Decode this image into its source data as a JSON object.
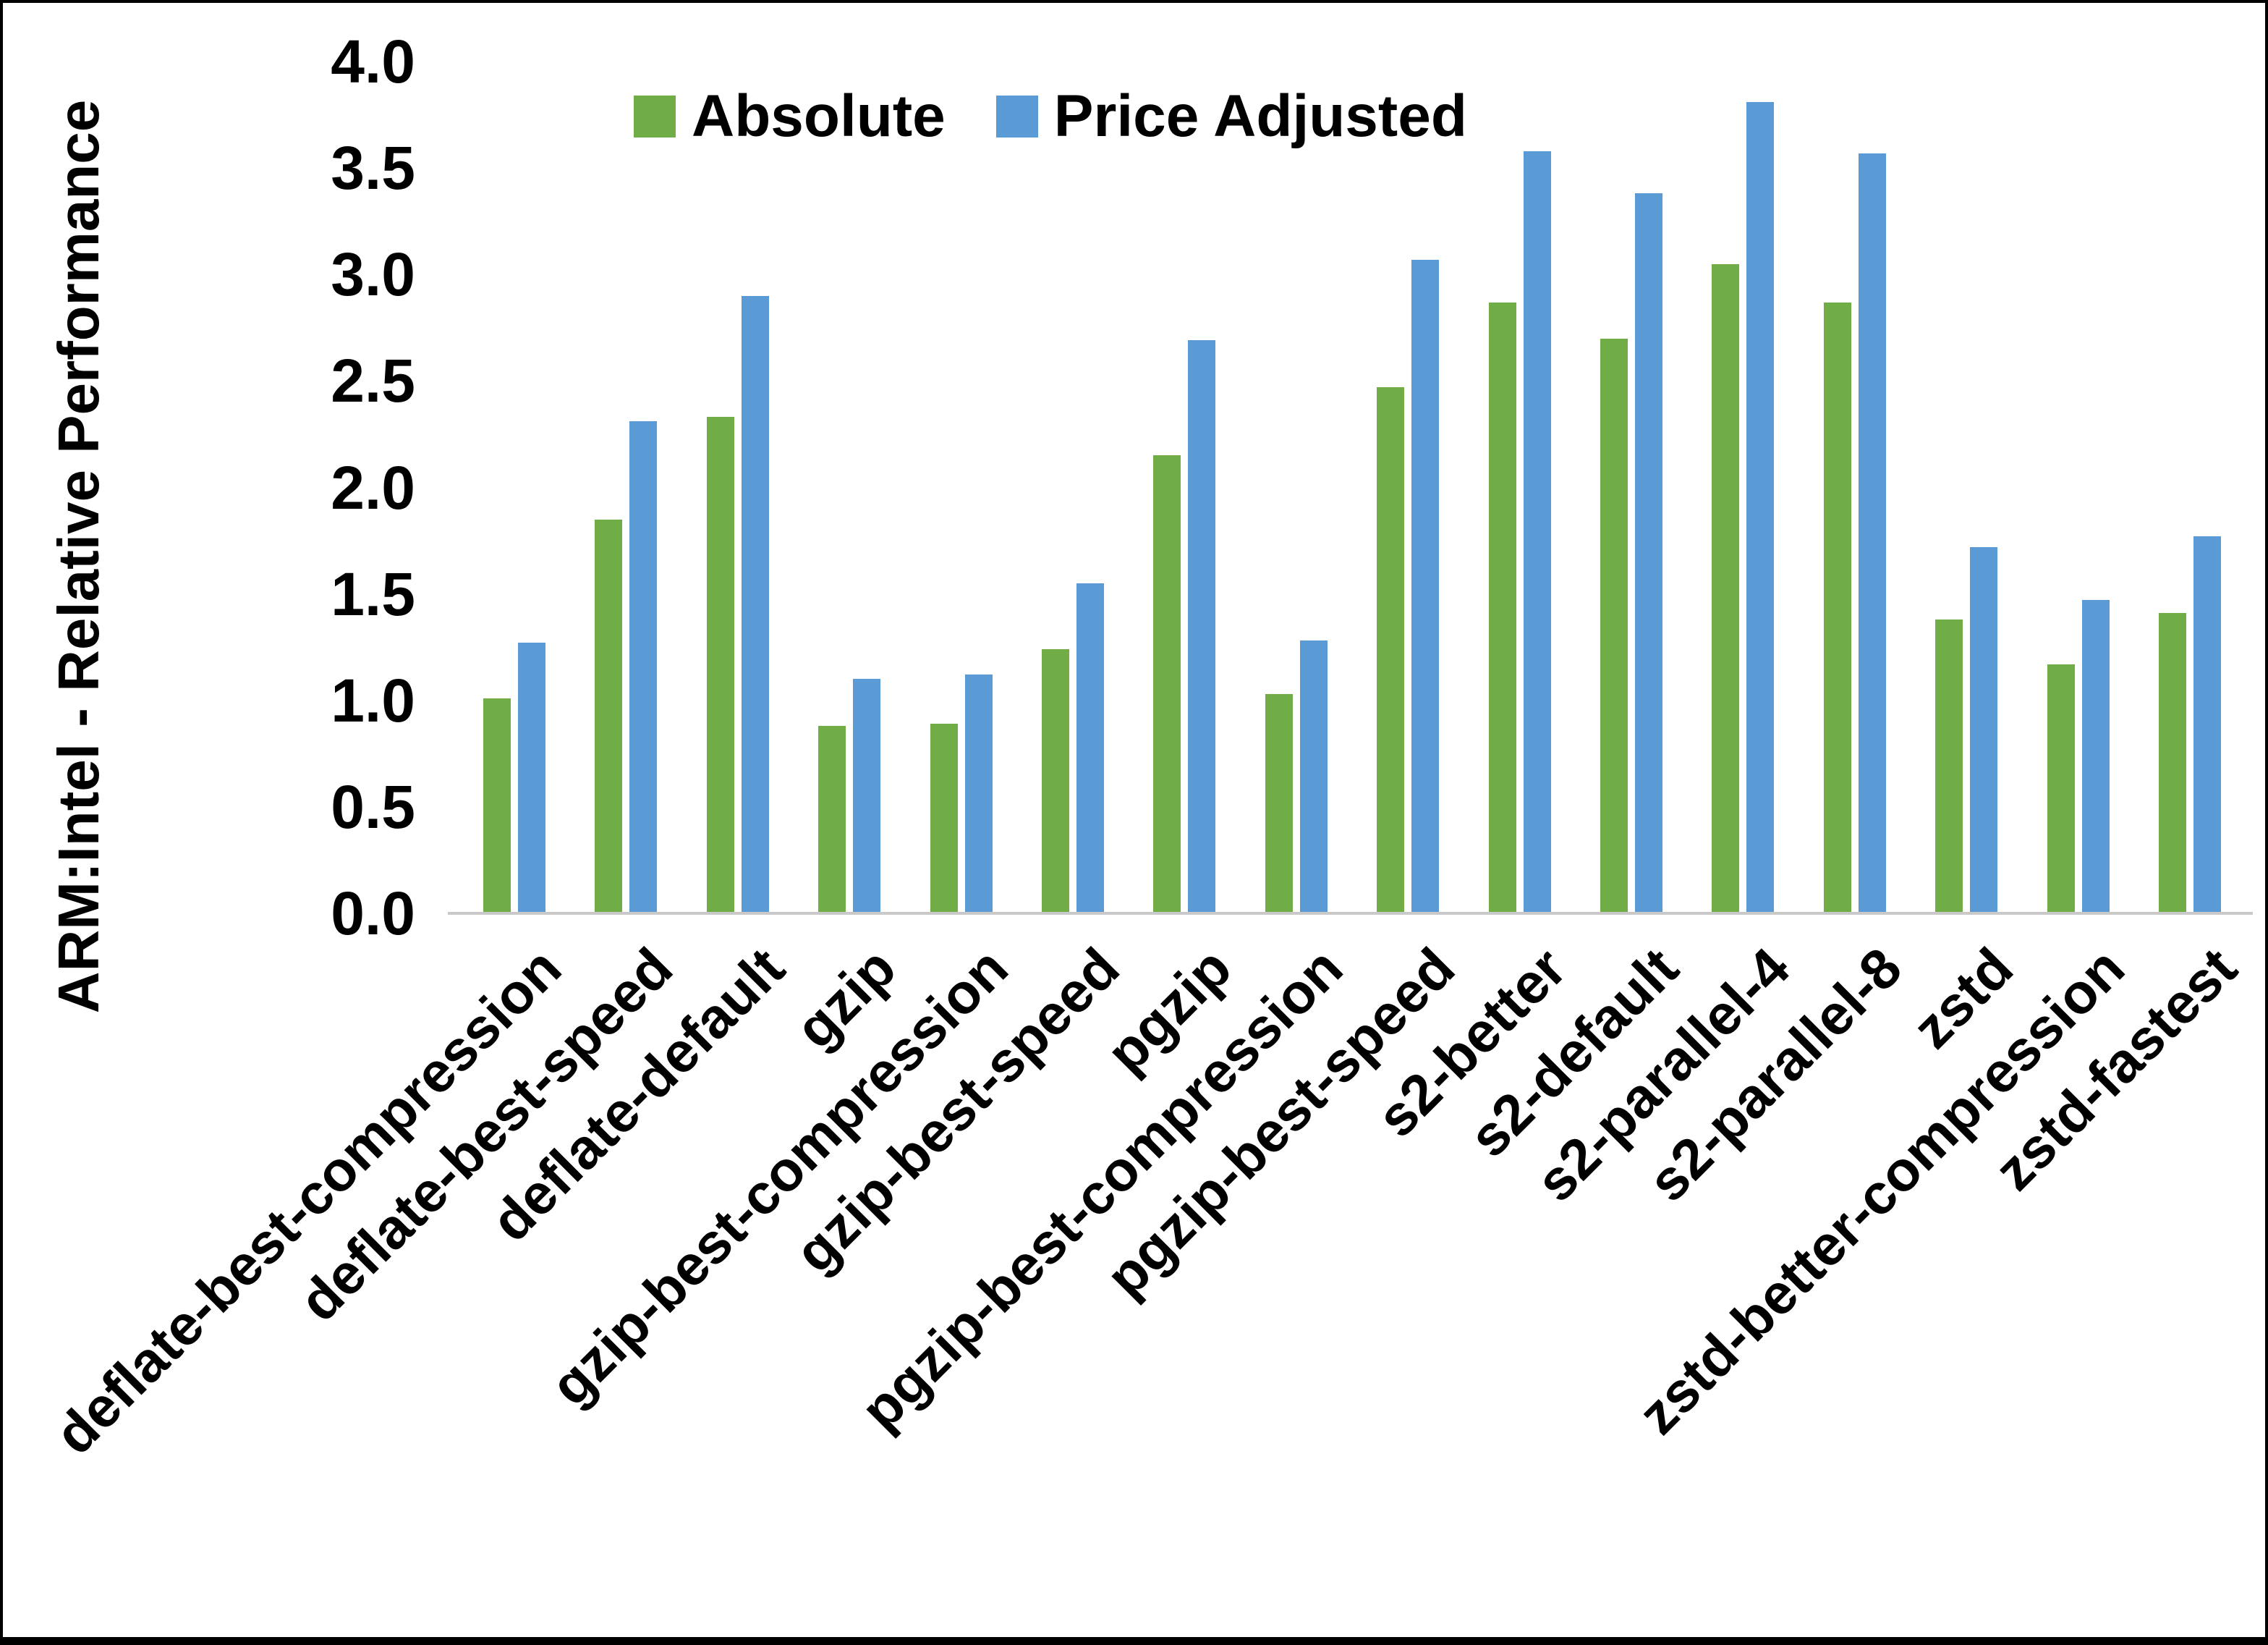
{
  "frame": {
    "background": "#ffffff",
    "border_color": "#000000"
  },
  "y_axis": {
    "title": "ARM:Intel - Relative Performance",
    "ticks": [
      "4.0",
      "3.5",
      "3.0",
      "2.5",
      "2.0",
      "1.5",
      "1.0",
      "0.5",
      "0.0"
    ]
  },
  "legend": {
    "absolute_label": "Absolute",
    "price_adjusted_label": "Price Adjusted"
  },
  "colors": {
    "absolute_green": "#70AD47",
    "price_adjusted_blue": "#5B9BD5",
    "axis_gray": "#c9c9c9"
  },
  "chart_data": {
    "type": "bar",
    "title": "",
    "xlabel": "",
    "ylabel": "ARM:Intel - Relative Performance",
    "ylim": [
      0.0,
      4.0
    ],
    "ytick_step": 0.5,
    "grid": false,
    "legend_position": "top-center",
    "categories": [
      "deflate-best-compression",
      "deflate-best-speed",
      "deflate-default",
      "gzip",
      "gzip-best-compression",
      "gzip-best-speed",
      "pgzip",
      "pgzip-best-compression",
      "pgzip-best-speed",
      "s2-better",
      "s2-default",
      "s2-parallel-4",
      "s2-parallel-8",
      "zstd",
      "zstd-better-compression",
      "zstd-fastest"
    ],
    "series": [
      {
        "name": "Absolute",
        "color": "#70AD47",
        "values": [
          1.01,
          1.85,
          2.33,
          0.88,
          0.89,
          1.24,
          2.15,
          1.03,
          2.47,
          2.87,
          2.7,
          3.05,
          2.87,
          1.38,
          1.17,
          1.41
        ]
      },
      {
        "name": "Price Adjusted",
        "color": "#5B9BD5",
        "values": [
          1.27,
          2.31,
          2.9,
          1.1,
          1.12,
          1.55,
          2.69,
          1.28,
          3.07,
          3.58,
          3.38,
          3.81,
          3.57,
          1.72,
          1.47,
          1.77
        ]
      }
    ]
  }
}
